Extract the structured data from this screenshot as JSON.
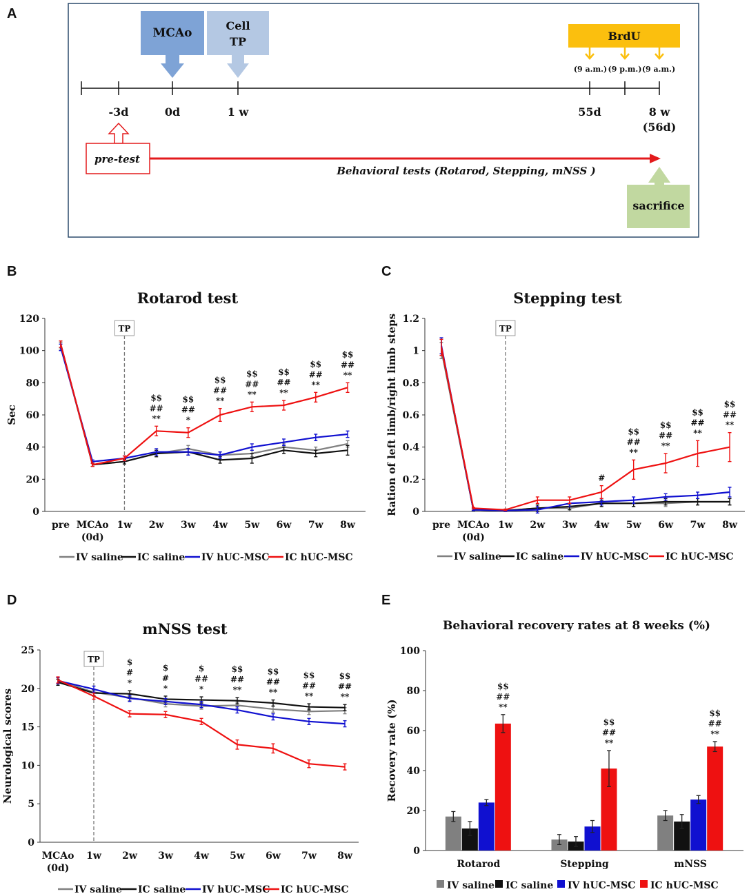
{
  "panel_letters": [
    "A",
    "B",
    "C",
    "D",
    "E"
  ],
  "timeline": {
    "mcao_label": "MCAo",
    "cell_label_1": "Cell",
    "cell_label_2": "TP",
    "brdu_label": "BrdU",
    "brdu_times": [
      "(9 a.m.)",
      "(9 p.m.)",
      "(9 a.m.)"
    ],
    "ticks": [
      "-3d",
      "0d",
      "1 w",
      "55d",
      "8 w",
      "(56d)"
    ],
    "pretest_label": "pre-test",
    "behavioral_label": "Behavioral tests (Rotarod, Stepping, mNSS )",
    "sacrifice_label": "sacrifice",
    "colors": {
      "mcao": "#7ea3d6",
      "cell": "#b4c8e3",
      "brdu": "#fbbf0e",
      "sacrifice": "#c1d8a0",
      "arrow": "#e31a1c"
    }
  },
  "series_names": [
    "IV saline",
    "IC saline",
    "IV hUC-MSC",
    "IC hUC-MSC"
  ],
  "series_colors": [
    "#808080",
    "#111111",
    "#1010d0",
    "#ee1111"
  ],
  "tp_marker": "TP",
  "chart_data": [
    {
      "type": "line",
      "panel": "B",
      "title": "Rotarod test",
      "ylabel": "Sec",
      "xlabel": "",
      "ylim": [
        0,
        120
      ],
      "yticks": [
        0,
        20,
        40,
        60,
        80,
        100,
        120
      ],
      "categories": [
        "pre",
        "MCAo\n(0d)",
        "1w",
        "2w",
        "3w",
        "4w",
        "5w",
        "6w",
        "7w",
        "8w"
      ],
      "series": [
        {
          "name": "IV saline",
          "values": [
            103,
            29,
            31,
            36,
            39,
            35,
            36,
            40,
            38,
            42
          ],
          "errors": [
            2,
            1,
            1.5,
            2,
            2,
            2,
            2,
            2,
            2,
            2
          ]
        },
        {
          "name": "IC saline",
          "values": [
            104,
            29,
            31,
            36,
            37,
            32,
            33,
            38,
            36,
            38
          ],
          "errors": [
            2,
            1,
            1.5,
            2,
            2,
            2,
            3,
            2,
            2,
            3
          ]
        },
        {
          "name": "IV hUC-MSC",
          "values": [
            102,
            31,
            33,
            37,
            37,
            35,
            40,
            43,
            46,
            48
          ],
          "errors": [
            2,
            1,
            1.5,
            2,
            2,
            2,
            2,
            2,
            2,
            2
          ]
        },
        {
          "name": "IC hUC-MSC",
          "values": [
            104,
            29,
            33,
            50,
            49,
            60,
            65,
            66,
            71,
            77
          ],
          "errors": [
            2,
            1,
            1.5,
            3,
            3,
            4,
            3,
            3,
            3,
            3
          ]
        }
      ],
      "annotations": [
        {
          "x": "2w",
          "lines": [
            "$$",
            "##",
            "**"
          ]
        },
        {
          "x": "3w",
          "lines": [
            "$$",
            "##",
            "*"
          ]
        },
        {
          "x": "4w",
          "lines": [
            "$$",
            "##",
            "**"
          ]
        },
        {
          "x": "5w",
          "lines": [
            "$$",
            "##",
            "**"
          ]
        },
        {
          "x": "6w",
          "lines": [
            "$$",
            "##",
            "**"
          ]
        },
        {
          "x": "7w",
          "lines": [
            "$$",
            "##",
            "**"
          ]
        },
        {
          "x": "8w",
          "lines": [
            "$$",
            "##",
            "**"
          ]
        }
      ],
      "tp_at": "1w"
    },
    {
      "type": "line",
      "panel": "C",
      "title": "Stepping test",
      "ylabel": "Ration of left limb/right limb steps",
      "xlabel": "",
      "ylim": [
        0,
        1.2
      ],
      "yticks": [
        0,
        0.2,
        0.4,
        0.6,
        0.8,
        1,
        1.2
      ],
      "categories": [
        "pre",
        "MCAo\n(0d)",
        "1w",
        "2w",
        "3w",
        "4w",
        "5w",
        "6w",
        "7w",
        "8w"
      ],
      "series": [
        {
          "name": "IV saline",
          "values": [
            1.0,
            0.01,
            0.005,
            0.02,
            0.02,
            0.05,
            0.05,
            0.05,
            0.06,
            0.06
          ],
          "errors": [
            0.05,
            0.005,
            0.005,
            0.02,
            0.02,
            0.02,
            0.02,
            0.02,
            0.02,
            0.02
          ]
        },
        {
          "name": "IC saline",
          "values": [
            1.02,
            0.01,
            0.005,
            0.02,
            0.03,
            0.05,
            0.05,
            0.06,
            0.06,
            0.06
          ],
          "errors": [
            0.05,
            0.005,
            0.005,
            0.02,
            0.02,
            0.02,
            0.02,
            0.02,
            0.02,
            0.02
          ]
        },
        {
          "name": "IV hUC-MSC",
          "values": [
            1.03,
            0.01,
            0.005,
            0.01,
            0.05,
            0.06,
            0.07,
            0.09,
            0.1,
            0.12
          ],
          "errors": [
            0.05,
            0.005,
            0.005,
            0.02,
            0.02,
            0.02,
            0.02,
            0.02,
            0.02,
            0.03
          ]
        },
        {
          "name": "IC hUC-MSC",
          "values": [
            1.02,
            0.02,
            0.01,
            0.07,
            0.07,
            0.12,
            0.26,
            0.3,
            0.36,
            0.4
          ],
          "errors": [
            0.05,
            0.005,
            0.005,
            0.02,
            0.02,
            0.04,
            0.06,
            0.06,
            0.08,
            0.09
          ]
        }
      ],
      "annotations": [
        {
          "x": "4w",
          "lines": [
            "#"
          ]
        },
        {
          "x": "5w",
          "lines": [
            "$$",
            "##",
            "**"
          ]
        },
        {
          "x": "6w",
          "lines": [
            "$$",
            "##",
            "**"
          ]
        },
        {
          "x": "7w",
          "lines": [
            "$$",
            "##",
            "**"
          ]
        },
        {
          "x": "8w",
          "lines": [
            "$$",
            "##",
            "**"
          ]
        }
      ],
      "tp_at": "1w"
    },
    {
      "type": "line",
      "panel": "D",
      "title": "mNSS test",
      "ylabel": "Neurological scores",
      "xlabel": "",
      "ylim": [
        0,
        25
      ],
      "yticks": [
        0,
        5,
        10,
        15,
        20,
        25
      ],
      "categories": [
        "MCAo\n(0d)",
        "1w",
        "2w",
        "3w",
        "4w",
        "5w",
        "6w",
        "7w",
        "8w"
      ],
      "series": [
        {
          "name": "IV saline",
          "values": [
            21.0,
            19.5,
            18.8,
            18.0,
            17.7,
            17.8,
            17.3,
            17.0,
            17.1
          ],
          "errors": [
            0.4,
            0.4,
            0.4,
            0.4,
            0.4,
            0.4,
            0.4,
            0.4,
            0.4
          ]
        },
        {
          "name": "IC saline",
          "values": [
            20.8,
            19.4,
            19.3,
            18.6,
            18.5,
            18.4,
            18.1,
            17.6,
            17.5
          ],
          "errors": [
            0.4,
            0.4,
            0.4,
            0.4,
            0.4,
            0.4,
            0.4,
            0.4,
            0.4
          ]
        },
        {
          "name": "IV hUC-MSC",
          "values": [
            21.0,
            19.9,
            18.7,
            18.3,
            17.9,
            17.2,
            16.3,
            15.7,
            15.4
          ],
          "errors": [
            0.4,
            0.4,
            0.4,
            0.4,
            0.4,
            0.4,
            0.4,
            0.4,
            0.4
          ]
        },
        {
          "name": "IC hUC-MSC",
          "values": [
            21.1,
            19.0,
            16.7,
            16.6,
            15.7,
            12.7,
            12.2,
            10.2,
            9.8
          ],
          "errors": [
            0.4,
            0.4,
            0.4,
            0.4,
            0.4,
            0.6,
            0.6,
            0.5,
            0.4
          ]
        }
      ],
      "annotations": [
        {
          "x": "2w",
          "lines": [
            "$",
            "#",
            "*"
          ]
        },
        {
          "x": "3w",
          "lines": [
            "$",
            "#",
            "*"
          ]
        },
        {
          "x": "4w",
          "lines": [
            "$",
            "##",
            "*"
          ]
        },
        {
          "x": "5w",
          "lines": [
            "$$",
            "##",
            "**"
          ]
        },
        {
          "x": "6w",
          "lines": [
            "$$",
            "##",
            "**"
          ]
        },
        {
          "x": "7w",
          "lines": [
            "$$",
            "##",
            "**"
          ]
        },
        {
          "x": "8w",
          "lines": [
            "$$",
            "##",
            "**"
          ]
        }
      ],
      "tp_at": "1w"
    },
    {
      "type": "bar",
      "panel": "E",
      "title": "Behavioral recovery rates at 8 weeks (%)",
      "ylabel": "Recovery rate (%)",
      "xlabel": "",
      "ylim": [
        0,
        100
      ],
      "yticks": [
        0,
        20,
        40,
        60,
        80,
        100
      ],
      "categories": [
        "Rotarod",
        "Stepping",
        "mNSS"
      ],
      "series": [
        {
          "name": "IV saline",
          "values": [
            17,
            5.5,
            17.5
          ],
          "errors": [
            2.5,
            2.5,
            2.5
          ]
        },
        {
          "name": "IC saline",
          "values": [
            11,
            4.5,
            14.5
          ],
          "errors": [
            3.5,
            2.5,
            3.5
          ]
        },
        {
          "name": "IV hUC-MSC",
          "values": [
            24,
            12,
            25.5
          ],
          "errors": [
            1.5,
            3.0,
            2.0
          ]
        },
        {
          "name": "IC hUC-MSC",
          "values": [
            63.5,
            41,
            52
          ],
          "errors": [
            4.5,
            9.0,
            2.5
          ]
        }
      ],
      "annotations": [
        {
          "x": "Rotarod",
          "lines": [
            "$$",
            "##",
            "**"
          ]
        },
        {
          "x": "Stepping",
          "lines": [
            "$$",
            "##",
            "**"
          ]
        },
        {
          "x": "mNSS",
          "lines": [
            "$$",
            "##",
            "**"
          ]
        }
      ]
    }
  ]
}
